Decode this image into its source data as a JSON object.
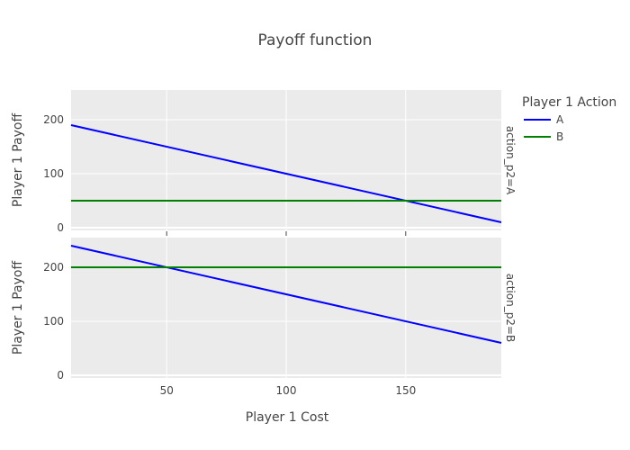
{
  "chart_data": {
    "type": "line",
    "title": "Payoff function",
    "xlabel": "Player 1 Cost",
    "ylabel": "Player 1 Payoff",
    "xlim": [
      10,
      190
    ],
    "xticks": [
      50,
      100,
      150
    ],
    "ylim": [
      -5,
      255
    ],
    "yticks": [
      0,
      100,
      200
    ],
    "grid": true,
    "legend": {
      "title": "Player 1 Action",
      "placement": "right",
      "entries": [
        {
          "name": "A",
          "color": "#0000ff"
        },
        {
          "name": "B",
          "color": "#008000"
        }
      ]
    },
    "facets": [
      {
        "label": "action_p2=A",
        "series": [
          {
            "name": "A",
            "color": "#0000ff",
            "x": [
              10,
              190
            ],
            "y": [
              190,
              10
            ]
          },
          {
            "name": "B",
            "color": "#008000",
            "x": [
              10,
              190
            ],
            "y": [
              50,
              50
            ]
          }
        ]
      },
      {
        "label": "action_p2=B",
        "series": [
          {
            "name": "A",
            "color": "#0000ff",
            "x": [
              10,
              190
            ],
            "y": [
              240,
              60
            ]
          },
          {
            "name": "B",
            "color": "#008000",
            "x": [
              10,
              190
            ],
            "y": [
              200,
              200
            ]
          }
        ]
      }
    ]
  }
}
